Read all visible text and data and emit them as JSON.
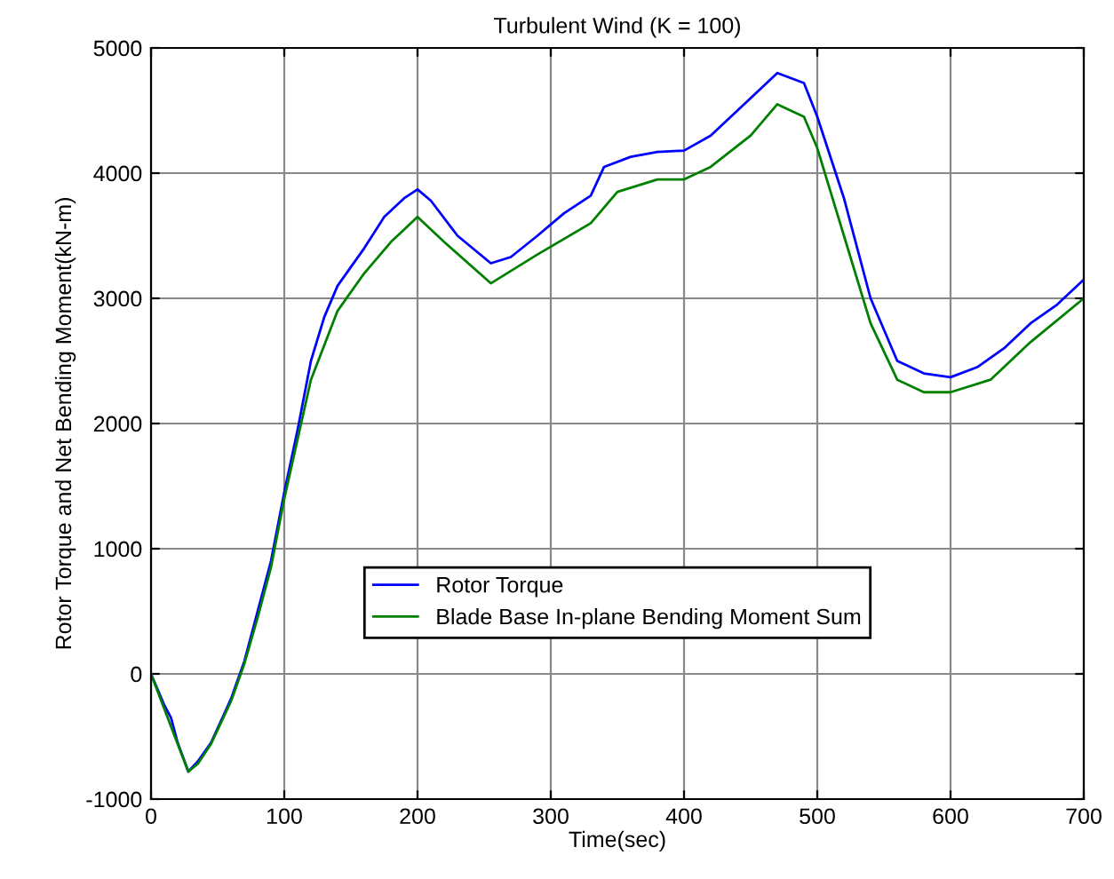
{
  "chart_data": {
    "type": "line",
    "title": "Turbulent Wind (K = 100)",
    "xlabel": "Time(sec)",
    "ylabel": "Rotor Torque and Net Bending Moment(kN-m)",
    "xlim": [
      0,
      700
    ],
    "ylim": [
      -1000,
      5000
    ],
    "xticks": [
      0,
      100,
      200,
      300,
      400,
      500,
      600,
      700
    ],
    "yticks": [
      -1000,
      0,
      1000,
      2000,
      3000,
      4000,
      5000
    ],
    "grid": true,
    "legend": "bottom",
    "series": [
      {
        "name": "Rotor Torque",
        "color": "#0000ff",
        "x": [
          0,
          10,
          15,
          20,
          28,
          35,
          45,
          60,
          70,
          80,
          90,
          100,
          110,
          120,
          130,
          140,
          160,
          175,
          190,
          200,
          210,
          230,
          255,
          270,
          290,
          310,
          330,
          340,
          360,
          380,
          400,
          420,
          450,
          470,
          490,
          500,
          520,
          540,
          560,
          580,
          600,
          620,
          640,
          660,
          680,
          700
        ],
        "values": [
          0,
          -250,
          -350,
          -550,
          -780,
          -700,
          -550,
          -200,
          100,
          500,
          900,
          1450,
          1950,
          2500,
          2850,
          3100,
          3400,
          3650,
          3800,
          3870,
          3780,
          3500,
          3280,
          3330,
          3500,
          3680,
          3820,
          4050,
          4130,
          4170,
          4180,
          4300,
          4600,
          4800,
          4720,
          4450,
          3800,
          3000,
          2500,
          2400,
          2370,
          2450,
          2600,
          2800,
          2950,
          3150
        ]
      },
      {
        "name": "Blade Base In-plane Bending Moment Sum",
        "color": "#008000",
        "x": [
          0,
          10,
          20,
          28,
          35,
          45,
          60,
          70,
          80,
          90,
          100,
          120,
          140,
          160,
          180,
          200,
          220,
          255,
          290,
          330,
          350,
          380,
          400,
          420,
          450,
          470,
          490,
          500,
          520,
          540,
          560,
          580,
          600,
          630,
          660,
          700
        ],
        "values": [
          0,
          -280,
          -560,
          -780,
          -720,
          -560,
          -220,
          80,
          450,
          850,
          1400,
          2350,
          2900,
          3200,
          3450,
          3650,
          3450,
          3120,
          3350,
          3600,
          3850,
          3950,
          3950,
          4050,
          4300,
          4550,
          4450,
          4200,
          3500,
          2800,
          2350,
          2250,
          2250,
          2350,
          2650,
          3000
        ]
      }
    ]
  }
}
